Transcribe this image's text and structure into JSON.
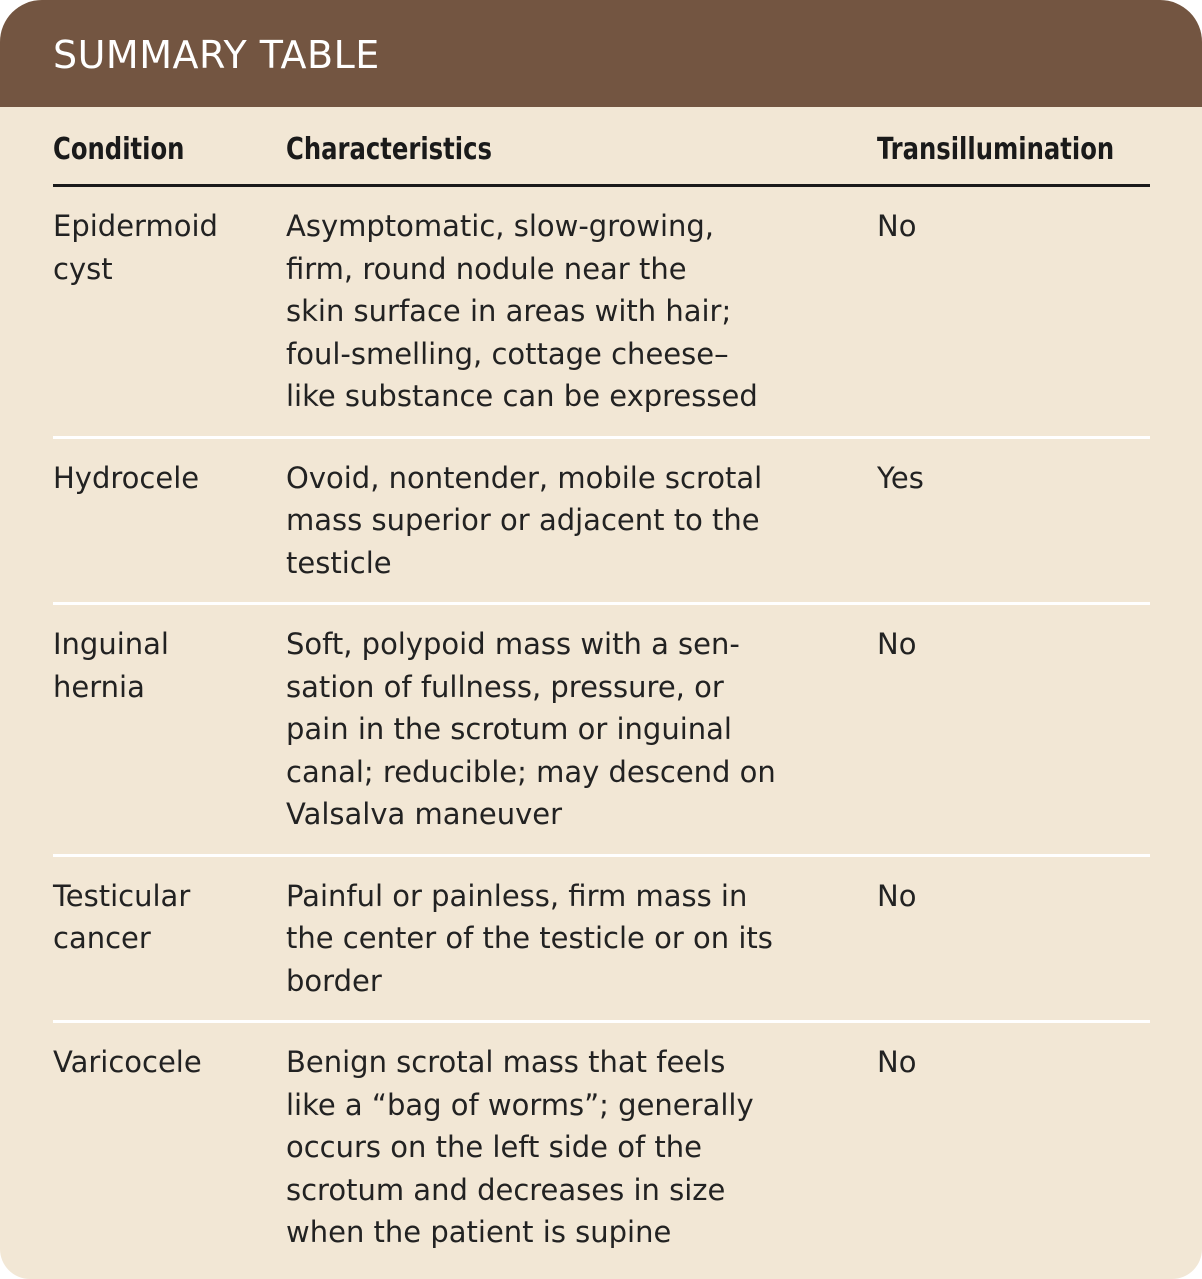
{
  "title": "SUMMARY TABLE",
  "columns": [
    "Condition",
    "Characteristics",
    "Transillumination"
  ],
  "rows": [
    {
      "condition": [
        "Epidermoid",
        "cyst"
      ],
      "characteristics": [
        "Asymptomatic, slow-growing,",
        "firm, round nodule near the",
        "skin surface in areas with hair;",
        "foul-smelling, cottage cheese–",
        "like substance can be expressed"
      ],
      "transillumination": "No"
    },
    {
      "condition": [
        "Hydrocele"
      ],
      "characteristics": [
        "Ovoid, nontender, mobile scrotal",
        "mass superior or adjacent to the",
        "testicle"
      ],
      "transillumination": "Yes"
    },
    {
      "condition": [
        "Inguinal",
        "hernia"
      ],
      "characteristics": [
        "Soft, polypoid mass with a sen-",
        "sation of fullness, pressure, or",
        "pain in the scrotum or inguinal",
        "canal; reducible; may descend on",
        "Valsalva maneuver"
      ],
      "transillumination": "No"
    },
    {
      "condition": [
        "Testicular",
        "cancer"
      ],
      "characteristics": [
        "Painful or painless, firm mass in",
        "the center of the testicle or on its",
        "border"
      ],
      "transillumination": "No"
    },
    {
      "condition": [
        "Varicocele"
      ],
      "characteristics": [
        "Benign scrotal mass that feels",
        "like a “bag of worms”; generally",
        "occurs on the left side of the",
        "scrotum and decreases in size",
        "when the patient is supine"
      ],
      "transillumination": "No"
    }
  ],
  "colors": {
    "header": "#735541",
    "background": "#f2e7d5",
    "separator": "#ffffff"
  }
}
